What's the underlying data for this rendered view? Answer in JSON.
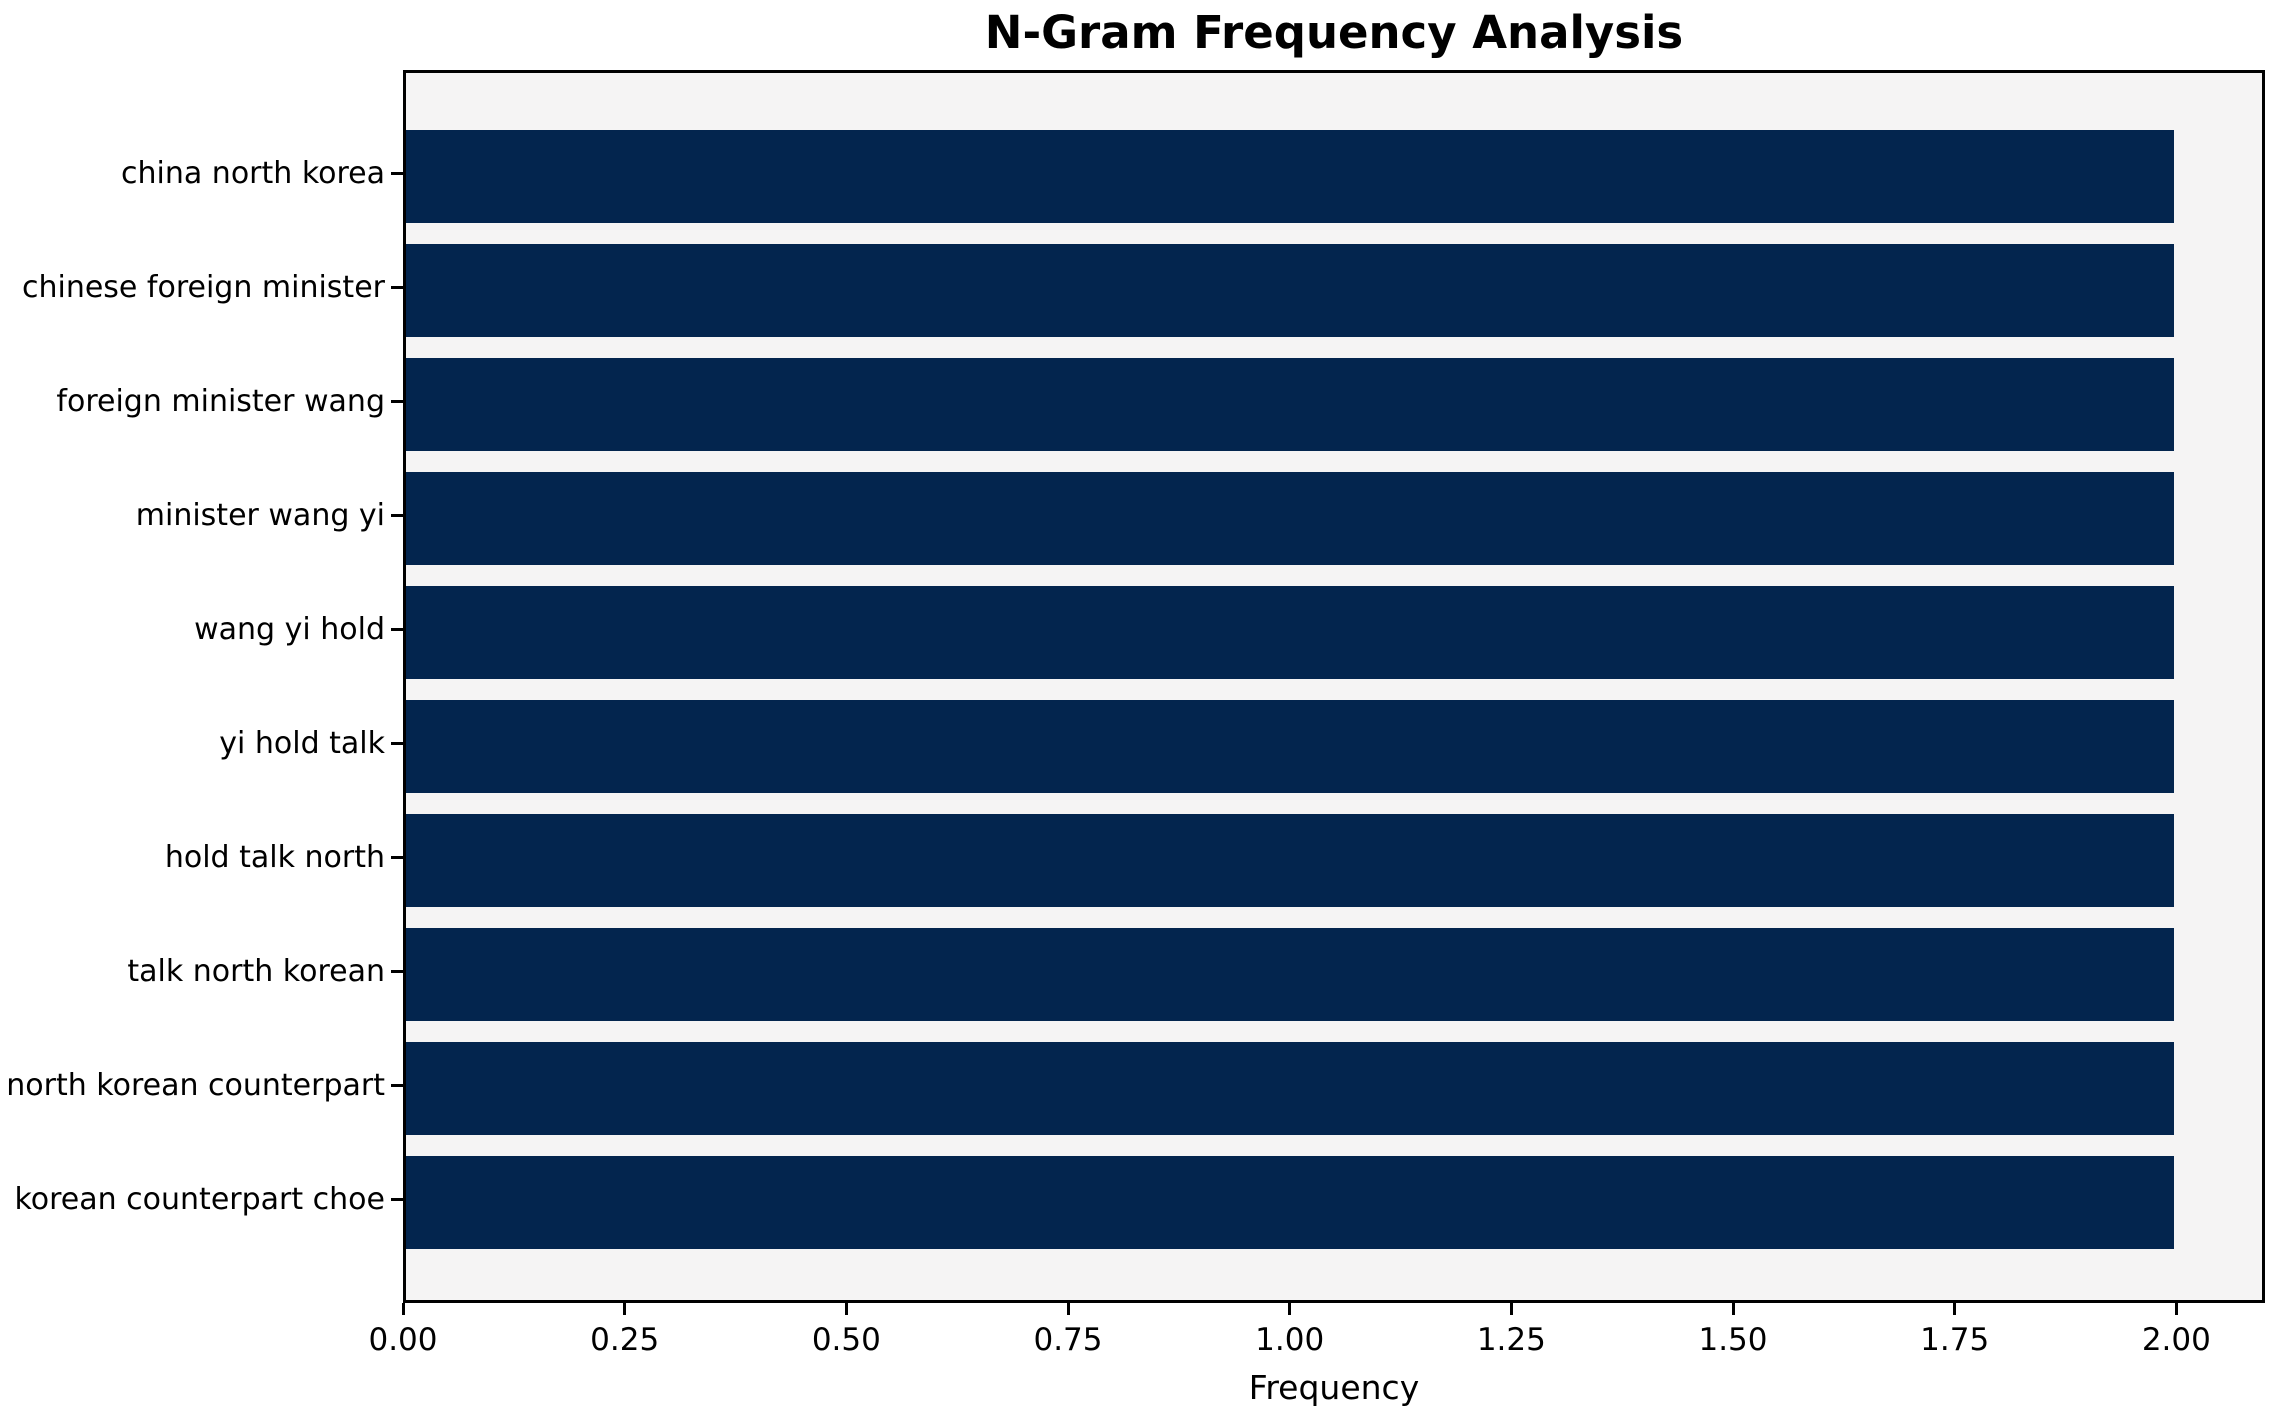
{
  "chart_data": {
    "type": "bar",
    "orientation": "horizontal",
    "title": "N-Gram Frequency Analysis",
    "xlabel": "Frequency",
    "ylabel": "",
    "categories": [
      "china north korea",
      "chinese foreign minister",
      "foreign minister wang",
      "minister wang yi",
      "wang yi hold",
      "yi hold talk",
      "hold talk north",
      "talk north korean",
      "north korean counterpart",
      "korean counterpart choe"
    ],
    "values": [
      2,
      2,
      2,
      2,
      2,
      2,
      2,
      2,
      2,
      2
    ],
    "xlim": [
      0.0,
      2.1
    ],
    "xticks": [
      0.0,
      0.25,
      0.5,
      0.75,
      1.0,
      1.25,
      1.5,
      1.75,
      2.0
    ],
    "xtick_labels": [
      "0.00",
      "0.25",
      "0.50",
      "0.75",
      "1.00",
      "1.25",
      "1.50",
      "1.75",
      "2.00"
    ],
    "grid": false,
    "legend": null,
    "colors": {
      "bar": "#03254e",
      "plot_background": "#f5f4f4",
      "figure_background": "#ffffff",
      "spine": "#000000",
      "text": "#000000"
    }
  }
}
